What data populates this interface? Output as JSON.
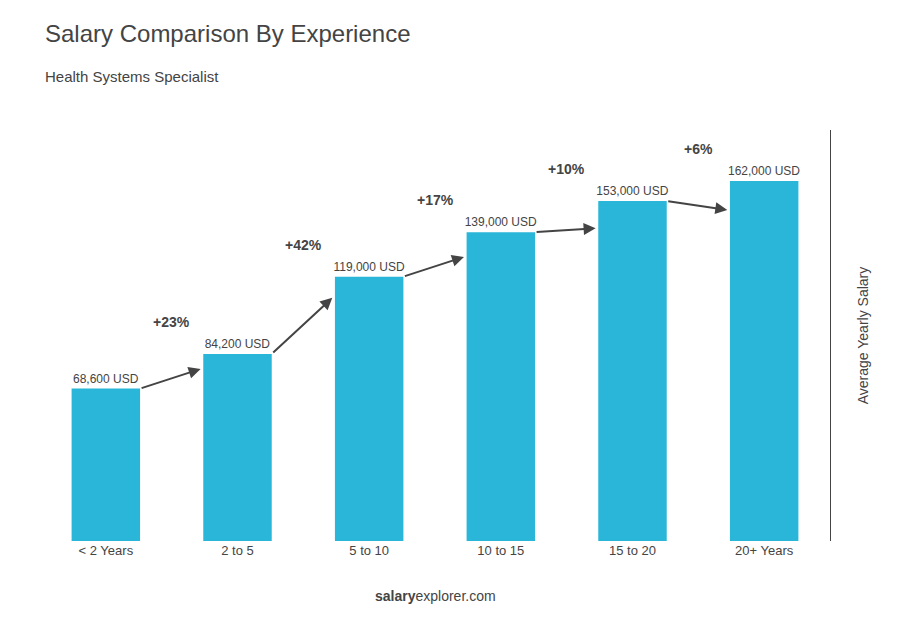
{
  "chart_data": {
    "type": "bar",
    "title": "Salary Comparison By Experience",
    "subtitle": "Health Systems Specialist",
    "categories": [
      "< 2 Years",
      "2 to 5",
      "5 to 10",
      "10 to 15",
      "15 to 20",
      "20+ Years"
    ],
    "values": [
      68600,
      84200,
      119000,
      139000,
      153000,
      162000
    ],
    "value_labels": [
      "68,600 USD",
      "84,200 USD",
      "119,000 USD",
      "139,000 USD",
      "153,000 USD",
      "162,000 USD"
    ],
    "data_labels": true,
    "color": "#29b6d8",
    "ylabel": "Average Yearly Salary",
    "ylim": [
      0,
      185000
    ],
    "yticks": [],
    "tick_labels": "x",
    "grid": false,
    "annotations": [
      "+23%",
      "+42%",
      "+17%",
      "+10%",
      "+6%"
    ],
    "footer": [
      "salary",
      "explorer.com"
    ]
  }
}
